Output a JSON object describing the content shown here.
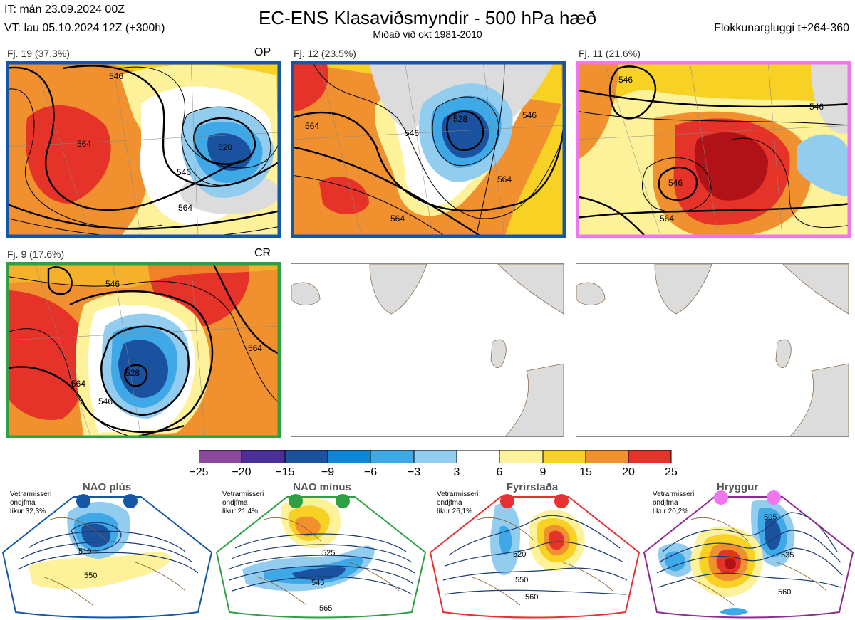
{
  "header": {
    "it_line": "IT: mán 23.09.2024 00Z",
    "vt_line": "VT: lau 05.10.2024 12Z  (+300h)",
    "title": "EC-ENS Klasaviðsmyndir - 500 hPa hæð",
    "subtitle": "Miðað við okt 1981-2010",
    "window_label": "Flokkunargluggi t+264-360"
  },
  "panels": [
    {
      "label": "Fj. 19 (37.3%)",
      "tag": "OP",
      "border": "#1457a6",
      "contours": [
        "520",
        "546",
        "546",
        "564",
        "564"
      ]
    },
    {
      "label": "Fj. 12 (23.5%)",
      "tag": "",
      "border": "#1457a6",
      "contours": [
        "564",
        "546",
        "528",
        "564",
        "564",
        "546"
      ]
    },
    {
      "label": "Fj. 11 (21.6%)",
      "tag": "",
      "border": "#ee77ee",
      "contours": [
        "546",
        "546",
        "546",
        "564"
      ]
    },
    {
      "label": "Fj. 9 (17.6%)",
      "tag": "CR",
      "border": "#2ea043",
      "contours": [
        "546",
        "528",
        "564",
        "564",
        "546"
      ]
    }
  ],
  "colorbar": {
    "ticks": [
      "−25",
      "−20",
      "−15",
      "−9",
      "−6",
      "−3",
      "3",
      "6",
      "9",
      "15",
      "20",
      "25"
    ],
    "colors": [
      "#8a4a9c",
      "#4a2f9a",
      "#1a52a0",
      "#0e85d6",
      "#3fa8e6",
      "#92ccef",
      "#ffffff",
      "#fdf19a",
      "#f7d124",
      "#f0902e",
      "#e6332a",
      "#b01218"
    ]
  },
  "regimes": [
    {
      "title": "NAO plús",
      "stat_line1": "Vetrarmisseri",
      "stat_line2": "ondjfma",
      "stat_line3": "líkur 32,3%",
      "border": "#1457a6",
      "dot": "#1457a6",
      "contours": [
        "510",
        "550"
      ]
    },
    {
      "title": "NAO mínus",
      "stat_line1": "Vetrarmisseri",
      "stat_line2": "ondjfma",
      "stat_line3": "líkur 21,4%",
      "border": "#2ea043",
      "dot": "#2ea043",
      "contours": [
        "525",
        "545",
        "565"
      ]
    },
    {
      "title": "Fyrirstaða",
      "stat_line1": "Vetrarmisseri",
      "stat_line2": "ondjfma",
      "stat_line3": "líkur 26,1%",
      "border": "#e53131",
      "dot": "#e53131",
      "contours": [
        "520",
        "550",
        "560"
      ]
    },
    {
      "title": "Hryggur",
      "stat_line1": "Vetrarmisseri",
      "stat_line2": "ondjfma",
      "stat_line3": "líkur 20,2%",
      "border": "#8e2a91",
      "dot": "#ee77ee",
      "contours": [
        "505",
        "535",
        "560"
      ]
    }
  ]
}
